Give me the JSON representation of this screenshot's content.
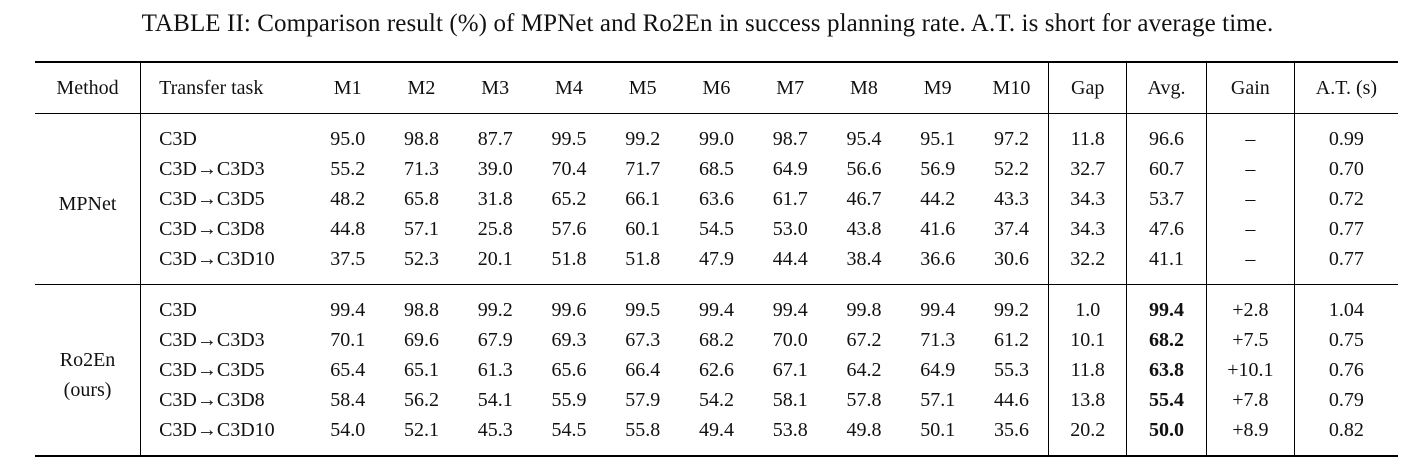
{
  "caption": "TABLE II: Comparison result (%) of MPNet and Ro2En in success planning rate. A.T. is short for average time.",
  "headers": [
    "Method",
    "Transfer task",
    "M1",
    "M2",
    "M3",
    "M4",
    "M5",
    "M6",
    "M7",
    "M8",
    "M9",
    "M10",
    "Gap",
    "Avg.",
    "Gain",
    "A.T. (s)"
  ],
  "groups": [
    {
      "method": "MPNet",
      "method_sub": "",
      "rows": [
        {
          "task": "C3D",
          "m": [
            "95.0",
            "98.8",
            "87.7",
            "99.5",
            "99.2",
            "99.0",
            "98.7",
            "95.4",
            "95.1",
            "97.2"
          ],
          "gap": "11.8",
          "avg": "96.6",
          "gain": "–",
          "at": "0.99"
        },
        {
          "task": "C3D→C3D3",
          "m": [
            "55.2",
            "71.3",
            "39.0",
            "70.4",
            "71.7",
            "68.5",
            "64.9",
            "56.6",
            "56.9",
            "52.2"
          ],
          "gap": "32.7",
          "avg": "60.7",
          "gain": "–",
          "at": "0.70"
        },
        {
          "task": "C3D→C3D5",
          "m": [
            "48.2",
            "65.8",
            "31.8",
            "65.2",
            "66.1",
            "63.6",
            "61.7",
            "46.7",
            "44.2",
            "43.3"
          ],
          "gap": "34.3",
          "avg": "53.7",
          "gain": "–",
          "at": "0.72"
        },
        {
          "task": "C3D→C3D8",
          "m": [
            "44.8",
            "57.1",
            "25.8",
            "57.6",
            "60.1",
            "54.5",
            "53.0",
            "43.8",
            "41.6",
            "37.4"
          ],
          "gap": "34.3",
          "avg": "47.6",
          "gain": "–",
          "at": "0.77"
        },
        {
          "task": "C3D→C3D10",
          "m": [
            "37.5",
            "52.3",
            "20.1",
            "51.8",
            "51.8",
            "47.9",
            "44.4",
            "38.4",
            "36.6",
            "30.6"
          ],
          "gap": "32.2",
          "avg": "41.1",
          "gain": "–",
          "at": "0.77"
        }
      ]
    },
    {
      "method": "Ro2En",
      "method_sub": "(ours)",
      "rows": [
        {
          "task": "C3D",
          "m": [
            "99.4",
            "98.8",
            "99.2",
            "99.6",
            "99.5",
            "99.4",
            "99.4",
            "99.8",
            "99.4",
            "99.2"
          ],
          "gap": "1.0",
          "avg": "99.4",
          "gain": "+2.8",
          "at": "1.04"
        },
        {
          "task": "C3D→C3D3",
          "m": [
            "70.1",
            "69.6",
            "67.9",
            "69.3",
            "67.3",
            "68.2",
            "70.0",
            "67.2",
            "71.3",
            "61.2"
          ],
          "gap": "10.1",
          "avg": "68.2",
          "gain": "+7.5",
          "at": "0.75"
        },
        {
          "task": "C3D→C3D5",
          "m": [
            "65.4",
            "65.1",
            "61.3",
            "65.6",
            "66.4",
            "62.6",
            "67.1",
            "64.2",
            "64.9",
            "55.3"
          ],
          "gap": "11.8",
          "avg": "63.8",
          "gain": "+10.1",
          "at": "0.76"
        },
        {
          "task": "C3D→C3D8",
          "m": [
            "58.4",
            "56.2",
            "54.1",
            "55.9",
            "57.9",
            "54.2",
            "58.1",
            "57.8",
            "57.1",
            "44.6"
          ],
          "gap": "13.8",
          "avg": "55.4",
          "gain": "+7.8",
          "at": "0.79"
        },
        {
          "task": "C3D→C3D10",
          "m": [
            "54.0",
            "52.1",
            "45.3",
            "54.5",
            "55.8",
            "49.4",
            "53.8",
            "49.8",
            "50.1",
            "35.6"
          ],
          "gap": "20.2",
          "avg": "50.0",
          "gain": "+8.9",
          "at": "0.82"
        }
      ]
    }
  ]
}
